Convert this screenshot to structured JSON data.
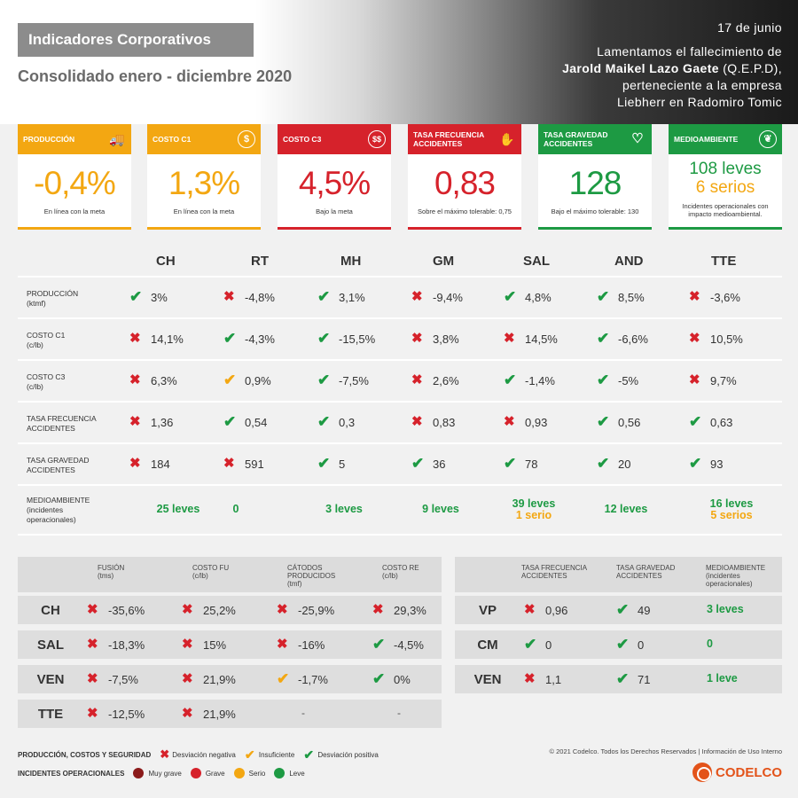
{
  "header": {
    "title": "Indicadores Corporativos",
    "subtitle": "Consolidado enero - diciembre 2020",
    "notice_date": "17 de junio",
    "notice_line1": "Lamentamos el fallecimiento de",
    "notice_name": "Jarold Maikel Lazo Gaete",
    "notice_name_suffix": " (Q.E.P.D),",
    "notice_line3": "perteneciente a la empresa",
    "notice_line4": "Liebherr en Radomiro Tomic"
  },
  "colors": {
    "orange": "#f3a712",
    "red": "#d6222b",
    "green": "#1d9a43",
    "gray": "#8c8c8c"
  },
  "cards": [
    {
      "label": "PRODUCCIÓN",
      "icon": "truck-icon",
      "value": "-0,4%",
      "note": "En línea con la meta",
      "color": "#f3a712"
    },
    {
      "label": "COSTO C1",
      "icon": "dollar-coin-icon",
      "value": "1,3%",
      "note": "En línea con la meta",
      "color": "#f3a712"
    },
    {
      "label": "COSTO C3",
      "icon": "coins-icon",
      "value": "4,5%",
      "note": "Bajo la meta",
      "color": "#d6222b"
    },
    {
      "label": "TASA FRECUENCIA ACCIDENTES",
      "icon": "bandaged-hand-icon",
      "value": "0,83",
      "note": "Sobre el máximo tolerable: 0,75",
      "color": "#d6222b"
    },
    {
      "label": "TASA GRAVEDAD ACCIDENTES",
      "icon": "heart-pulse-icon",
      "value": "128",
      "note": "Bajo el máximo tolerable: 130",
      "color": "#1d9a43"
    },
    {
      "label": "MEDIOAMBIENTE",
      "icon": "leaf-icon",
      "value_line1": "108 leves",
      "value_line2": "6 serios",
      "note": "Incidentes operacionales con impacto medioambiental.",
      "color": "#1d9a43"
    }
  ],
  "main_table": {
    "columns": [
      "CH",
      "RT",
      "MH",
      "GM",
      "SAL",
      "AND",
      "TTE"
    ],
    "rows": [
      {
        "label_line1": "PRODUCCIÓN",
        "label_line2": "(ktmf)",
        "cells": [
          [
            "pos",
            "3%"
          ],
          [
            "neg",
            "-4,8%"
          ],
          [
            "pos",
            "3,1%"
          ],
          [
            "neg",
            "-9,4%"
          ],
          [
            "pos",
            "4,8%"
          ],
          [
            "pos",
            "8,5%"
          ],
          [
            "neg",
            "-3,6%"
          ]
        ]
      },
      {
        "label_line1": "COSTO C1",
        "label_line2": "(c/lb)",
        "cells": [
          [
            "neg",
            "14,1%"
          ],
          [
            "pos",
            "-4,3%"
          ],
          [
            "pos",
            "-15,5%"
          ],
          [
            "neg",
            "3,8%"
          ],
          [
            "neg",
            "14,5%"
          ],
          [
            "pos",
            "-6,6%"
          ],
          [
            "neg",
            "10,5%"
          ]
        ]
      },
      {
        "label_line1": "COSTO C3",
        "label_line2": "(c/lb)",
        "cells": [
          [
            "neg",
            "6,3%"
          ],
          [
            "ins",
            "0,9%"
          ],
          [
            "pos",
            "-7,5%"
          ],
          [
            "neg",
            "2,6%"
          ],
          [
            "pos",
            "-1,4%"
          ],
          [
            "pos",
            "-5%"
          ],
          [
            "neg",
            "9,7%"
          ]
        ]
      },
      {
        "label_line1": "TASA FRECUENCIA",
        "label_line2": "ACCIDENTES",
        "cells": [
          [
            "neg",
            "1,36"
          ],
          [
            "pos",
            "0,54"
          ],
          [
            "pos",
            "0,3"
          ],
          [
            "neg",
            "0,83"
          ],
          [
            "neg",
            "0,93"
          ],
          [
            "pos",
            "0,56"
          ],
          [
            "pos",
            "0,63"
          ]
        ]
      },
      {
        "label_line1": "TASA GRAVEDAD",
        "label_line2": "ACCIDENTES",
        "cells": [
          [
            "neg",
            "184"
          ],
          [
            "neg",
            "591"
          ],
          [
            "pos",
            "5"
          ],
          [
            "pos",
            "36"
          ],
          [
            "pos",
            "78"
          ],
          [
            "pos",
            "20"
          ],
          [
            "pos",
            "93"
          ]
        ]
      }
    ],
    "env_row": {
      "label_line1": "MEDIOAMBIENTE",
      "label_line2": "(incidentes",
      "label_line3": "operacionales)",
      "cells": [
        {
          "leve": "25 leves"
        },
        {
          "leve": "0"
        },
        {
          "leve": "3 leves"
        },
        {
          "leve": "9 leves"
        },
        {
          "leve": "39 leves",
          "serio": "1 serio"
        },
        {
          "leve": "12 leves"
        },
        {
          "leve": "16 leves",
          "serio": "5 serios"
        }
      ]
    }
  },
  "smelter_table": {
    "headers": [
      {
        "l1": "FUSIÓN",
        "l2": "(tms)"
      },
      {
        "l1": "COSTO FU",
        "l2": "(c/lb)"
      },
      {
        "l1": "CÁTODOS",
        "l2": "PRODUCIDOS",
        "l3": "(tmf)"
      },
      {
        "l1": "COSTO RE",
        "l2": "(c/lb)"
      }
    ],
    "rows": [
      {
        "name": "CH",
        "cells": [
          [
            "neg",
            "-35,6%"
          ],
          [
            "neg",
            "25,2%"
          ],
          [
            "neg",
            "-25,9%"
          ],
          [
            "neg",
            "29,3%"
          ]
        ]
      },
      {
        "name": "SAL",
        "cells": [
          [
            "neg",
            "-18,3%"
          ],
          [
            "neg",
            "15%"
          ],
          [
            "neg",
            "-16%"
          ],
          [
            "pos",
            "-4,5%"
          ]
        ]
      },
      {
        "name": "VEN",
        "cells": [
          [
            "neg",
            "-7,5%"
          ],
          [
            "neg",
            "21,9%"
          ],
          [
            "ins",
            "-1,7%"
          ],
          [
            "pos",
            "0%"
          ]
        ]
      },
      {
        "name": "TTE",
        "cells": [
          [
            "neg",
            "-12,5%"
          ],
          [
            "neg",
            "21,9%"
          ],
          [
            "none",
            "-"
          ],
          [
            "none",
            "-"
          ]
        ]
      }
    ]
  },
  "safety_table": {
    "headers": [
      {
        "l1": "TASA FRECUENCIA",
        "l2": "ACCIDENTES"
      },
      {
        "l1": "TASA GRAVEDAD",
        "l2": "ACCIDENTES"
      },
      {
        "l1": "MEDIOAMBIENTE",
        "l2": "(incidentes",
        "l3": "operacionales)"
      }
    ],
    "rows": [
      {
        "name": "VP",
        "cells": [
          [
            "neg",
            "0,96"
          ],
          [
            "pos",
            "49"
          ]
        ],
        "env": "3 leves"
      },
      {
        "name": "CM",
        "cells": [
          [
            "pos",
            "0"
          ],
          [
            "pos",
            "0"
          ]
        ],
        "env": "0"
      },
      {
        "name": "VEN",
        "cells": [
          [
            "neg",
            "1,1"
          ],
          [
            "pos",
            "71"
          ]
        ],
        "env": "1 leve"
      }
    ]
  },
  "legend": {
    "row1_label": "PRODUCCIÓN, COSTOS Y SEGURIDAD",
    "neg": "Desviación negativa",
    "ins": "Insuficiente",
    "pos": "Desviación positiva",
    "row2_label": "INCIDENTES OPERACIONALES",
    "muy_grave": "Muy grave",
    "grave": "Grave",
    "serio": "Serio",
    "leve": "Leve",
    "dot_colors": [
      "#8b1a1a",
      "#d6222b",
      "#f3a712",
      "#1d9a43"
    ]
  },
  "footer": {
    "copyright": "© 2021 Codelco. Todos los Derechos Reservados | Información de Uso Interno",
    "logo_text": "CODELCO"
  }
}
